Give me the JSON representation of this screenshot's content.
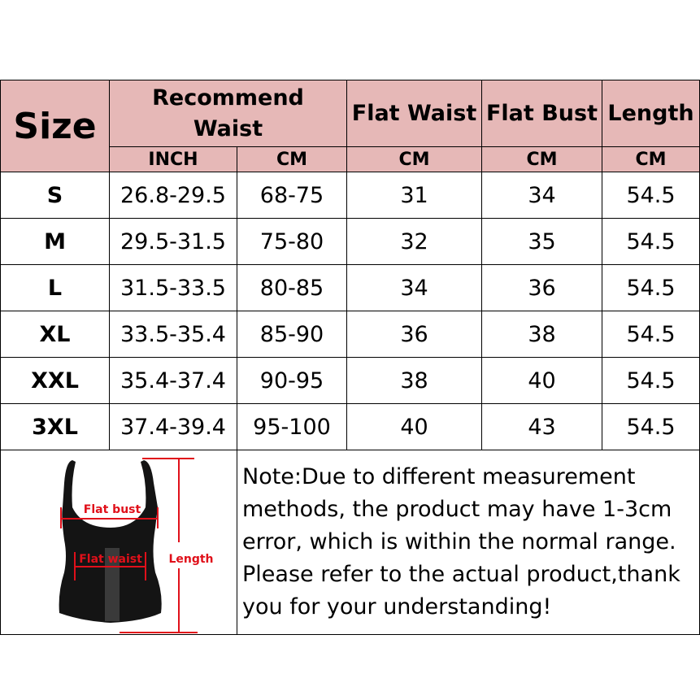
{
  "header": {
    "size": "Size",
    "recommend_waist": "Recommend Waist",
    "flat_waist": "Flat Waist",
    "flat_bust": "Flat Bust",
    "length": "Length",
    "units": [
      "INCH",
      "CM",
      "CM",
      "CM",
      "CM"
    ]
  },
  "rows": [
    {
      "size": "S",
      "inch": "26.8-29.5",
      "cm": "68-75",
      "flat_waist": "31",
      "flat_bust": "34",
      "length": "54.5"
    },
    {
      "size": "M",
      "inch": "29.5-31.5",
      "cm": "75-80",
      "flat_waist": "32",
      "flat_bust": "35",
      "length": "54.5"
    },
    {
      "size": "L",
      "inch": "31.5-33.5",
      "cm": "80-85",
      "flat_waist": "34",
      "flat_bust": "36",
      "length": "54.5"
    },
    {
      "size": "XL",
      "inch": "33.5-35.4",
      "cm": "85-90",
      "flat_waist": "36",
      "flat_bust": "38",
      "length": "54.5"
    },
    {
      "size": "XXL",
      "inch": "35.4-37.4",
      "cm": "90-95",
      "flat_waist": "38",
      "flat_bust": "40",
      "length": "54.5"
    },
    {
      "size": "3XL",
      "inch": "37.4-39.4",
      "cm": "95-100",
      "flat_waist": "40",
      "flat_bust": "43",
      "length": "54.5"
    }
  ],
  "diagram": {
    "flat_bust": "Flat bust",
    "flat_waist": "Flat waist",
    "length": "Length"
  },
  "note": "Note:Due to different measurement methods, the product may have 1-3cm error, which is within the normal range. Please refer to the actual product,thank you for your understanding!",
  "colors": {
    "header_bg": "#e6b8b7",
    "measure_red": "#e0101a"
  }
}
